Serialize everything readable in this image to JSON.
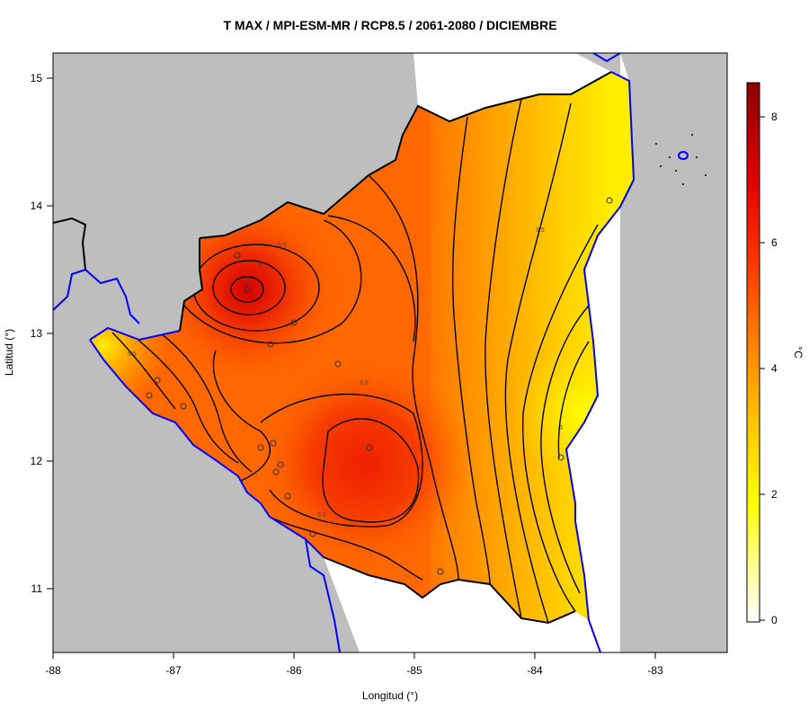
{
  "title": "T MAX / MPI-ESM-MR / RCP8.5 / 2061-2080 / DICIEMBRE",
  "axes": {
    "xlabel": "Longitud (°)",
    "ylabel": "Latitud (°)",
    "x_ticks": [
      "-88",
      "-87",
      "-86",
      "-85",
      "-84",
      "-83"
    ],
    "y_ticks": [
      "11",
      "12",
      "13",
      "14",
      "15"
    ]
  },
  "colorbar": {
    "label": "°C",
    "ticks": [
      "0",
      "2",
      "4",
      "6",
      "8"
    ]
  },
  "contour_labels": [
    "5.5",
    "6",
    "6.5",
    "5.5",
    "5.5",
    "5.5",
    "3.5",
    "3"
  ],
  "colors": {
    "land_background": "#bebebe",
    "coast": "#0000ff",
    "hot": "#e80000",
    "warm": "#ff8c00",
    "cool": "#ffff00"
  }
}
